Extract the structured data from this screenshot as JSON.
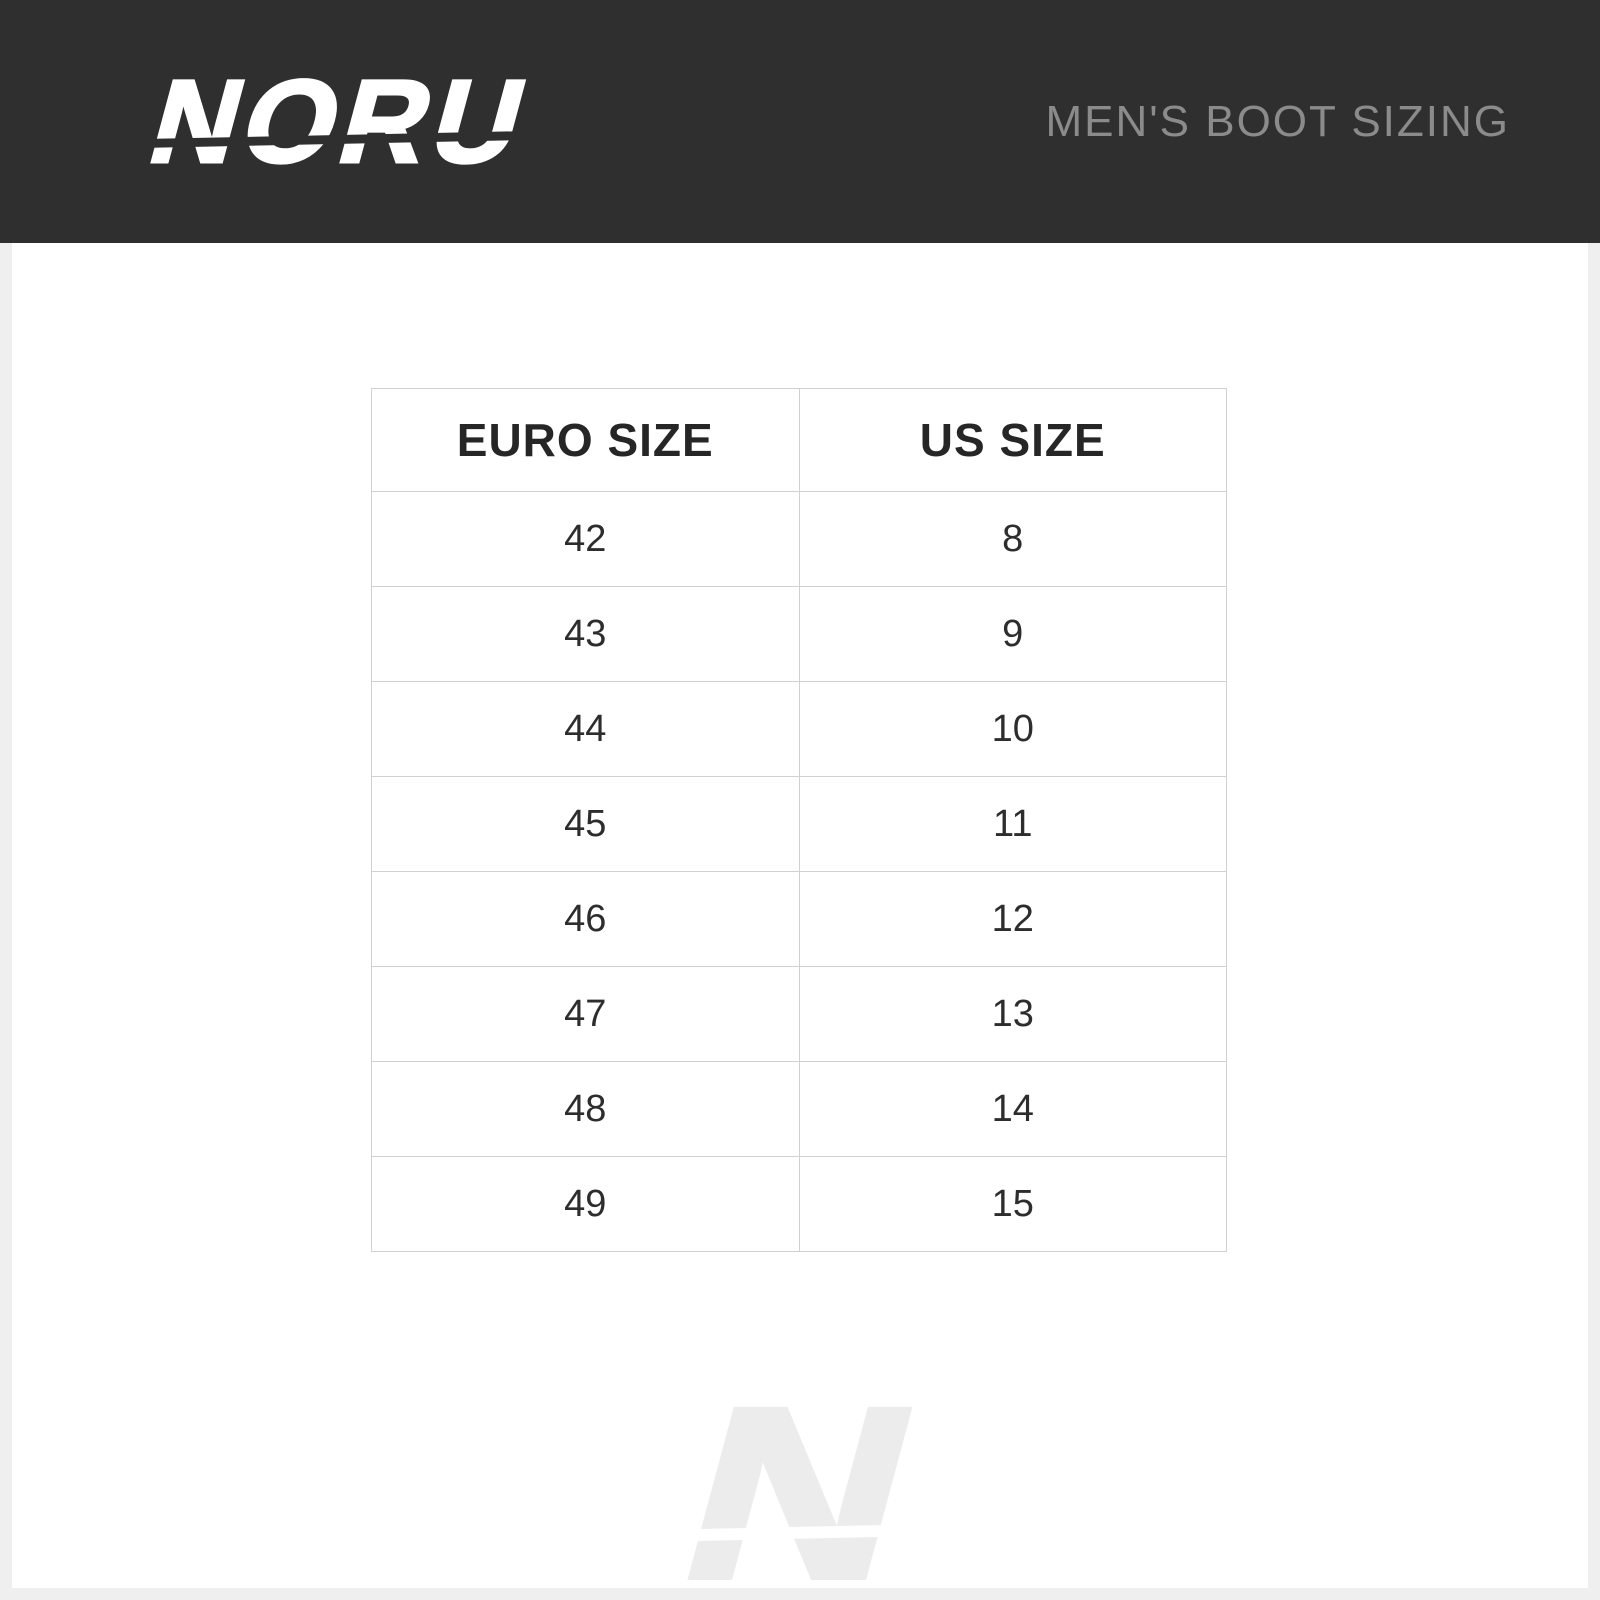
{
  "header": {
    "logo_text": "NORU",
    "title": "MEN'S BOOT SIZING"
  },
  "table": {
    "columns": [
      "EURO SIZE",
      "US SIZE"
    ],
    "rows": [
      [
        "42",
        "8"
      ],
      [
        "43",
        "9"
      ],
      [
        "44",
        "10"
      ],
      [
        "45",
        "11"
      ],
      [
        "46",
        "12"
      ],
      [
        "47",
        "13"
      ],
      [
        "48",
        "14"
      ],
      [
        "49",
        "15"
      ]
    ]
  },
  "watermark": {
    "letter": "N"
  },
  "colors": {
    "header_bg": "#2f2f2f",
    "header_title": "#8b8b8b",
    "logo": "#ffffff",
    "page_bg": "#efefef",
    "card_bg": "#ffffff",
    "table_border": "#d1d1d1",
    "table_header_text": "#262626",
    "table_cell_text": "#2d2d2d",
    "watermark": "#ececec"
  },
  "chart_data": {
    "type": "table",
    "title": "MEN'S BOOT SIZING",
    "columns": [
      "EURO SIZE",
      "US SIZE"
    ],
    "rows": [
      [
        42,
        8
      ],
      [
        43,
        9
      ],
      [
        44,
        10
      ],
      [
        45,
        11
      ],
      [
        46,
        12
      ],
      [
        47,
        13
      ],
      [
        48,
        14
      ],
      [
        49,
        15
      ]
    ]
  }
}
